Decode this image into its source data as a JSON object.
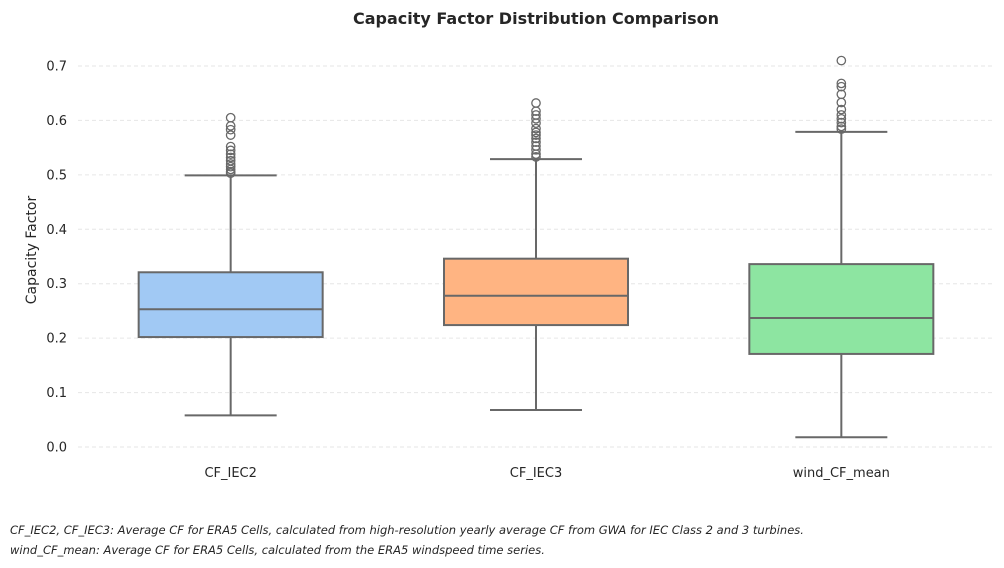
{
  "chart_data": {
    "type": "box",
    "title": "Capacity Factor Distribution Comparison",
    "xlabel": "",
    "ylabel": "Capacity Factor",
    "ylim": [
      -0.02,
      0.74
    ],
    "yticks": [
      0.0,
      0.1,
      0.2,
      0.3,
      0.4,
      0.5,
      0.6,
      0.7
    ],
    "ytick_labels": [
      "0.0",
      "0.1",
      "0.2",
      "0.3",
      "0.4",
      "0.5",
      "0.6",
      "0.7"
    ],
    "grid": true,
    "categories": [
      "CF_IEC2",
      "CF_IEC3",
      "wind_CF_mean"
    ],
    "boxes": [
      {
        "category": "CF_IEC2",
        "whisker_low": 0.058,
        "q1": 0.202,
        "median": 0.253,
        "q3": 0.321,
        "whisker_high": 0.499,
        "outliers": [
          0.503,
          0.506,
          0.51,
          0.515,
          0.52,
          0.526,
          0.532,
          0.538,
          0.545,
          0.552,
          0.573,
          0.583,
          0.59,
          0.605
        ],
        "color": "#a1c9f4"
      },
      {
        "category": "CF_IEC3",
        "whisker_low": 0.068,
        "q1": 0.224,
        "median": 0.278,
        "q3": 0.346,
        "whisker_high": 0.529,
        "outliers": [
          0.533,
          0.538,
          0.546,
          0.553,
          0.56,
          0.567,
          0.573,
          0.578,
          0.585,
          0.595,
          0.603,
          0.61,
          0.617,
          0.632
        ],
        "color": "#ffb482"
      },
      {
        "category": "wind_CF_mean",
        "whisker_low": 0.018,
        "q1": 0.171,
        "median": 0.237,
        "q3": 0.336,
        "whisker_high": 0.579,
        "outliers": [
          0.584,
          0.589,
          0.596,
          0.603,
          0.61,
          0.62,
          0.633,
          0.648,
          0.662,
          0.668,
          0.71
        ],
        "color": "#8de5a1"
      }
    ]
  },
  "footnotes": [
    "CF_IEC2, CF_IEC3: Average CF for ERA5 Cells, calculated from high-resolution yearly average CF from GWA for IEC Class 2 and 3 turbines.",
    "wind_CF_mean: Average CF for ERA5 Cells, calculated from the ERA5 windspeed time series."
  ]
}
